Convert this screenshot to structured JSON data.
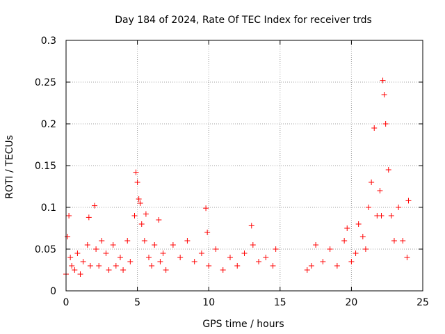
{
  "chart_data": {
    "type": "scatter",
    "title": "Day 184 of 2024, Rate Of TEC Index for receiver trds",
    "xlabel": "GPS time / hours",
    "ylabel": "ROTI / TECUs",
    "xlim": [
      0,
      25
    ],
    "ylim": [
      0,
      0.3
    ],
    "xticks": [
      0,
      5,
      10,
      15,
      20,
      25
    ],
    "xtick_labels": [
      "0",
      "5",
      "10",
      "15",
      "20",
      "25"
    ],
    "yticks": [
      0,
      0.05,
      0.1,
      0.15,
      0.2,
      0.25,
      0.3
    ],
    "ytick_labels": [
      "0",
      "0.05",
      "0.1",
      "0.15",
      "0.2",
      "0.25",
      "0.3"
    ],
    "grid": true,
    "marker": "+",
    "color": "#ff0000",
    "series": [
      {
        "name": "ROTI",
        "x": [
          0.0,
          0.1,
          0.2,
          0.3,
          0.4,
          0.6,
          0.8,
          1.0,
          1.2,
          1.5,
          1.6,
          1.7,
          2.0,
          2.1,
          2.3,
          2.5,
          2.8,
          3.0,
          3.3,
          3.5,
          3.8,
          4.0,
          4.3,
          4.5,
          4.8,
          4.9,
          5.0,
          5.1,
          5.2,
          5.3,
          5.5,
          5.6,
          5.8,
          6.0,
          6.2,
          6.5,
          6.6,
          6.8,
          7.0,
          7.5,
          8.0,
          8.5,
          9.0,
          9.5,
          9.8,
          9.9,
          10.0,
          10.5,
          11.0,
          11.5,
          12.0,
          12.5,
          13.0,
          13.1,
          13.5,
          14.0,
          14.5,
          14.7,
          16.9,
          17.2,
          17.5,
          18.0,
          18.5,
          19.0,
          19.5,
          19.7,
          20.0,
          20.3,
          20.5,
          20.8,
          21.0,
          21.2,
          21.4,
          21.6,
          21.8,
          22.0,
          22.1,
          22.2,
          22.3,
          22.4,
          22.6,
          22.8,
          23.0,
          23.3,
          23.6,
          23.9,
          24.0
        ],
        "y": [
          0.02,
          0.065,
          0.09,
          0.04,
          0.03,
          0.025,
          0.045,
          0.02,
          0.035,
          0.055,
          0.088,
          0.03,
          0.102,
          0.05,
          0.03,
          0.06,
          0.045,
          0.025,
          0.055,
          0.03,
          0.04,
          0.025,
          0.06,
          0.035,
          0.09,
          0.142,
          0.13,
          0.11,
          0.105,
          0.08,
          0.06,
          0.092,
          0.04,
          0.03,
          0.055,
          0.085,
          0.035,
          0.045,
          0.025,
          0.055,
          0.04,
          0.06,
          0.035,
          0.045,
          0.099,
          0.07,
          0.03,
          0.05,
          0.025,
          0.04,
          0.03,
          0.045,
          0.078,
          0.055,
          0.035,
          0.04,
          0.03,
          0.05,
          0.025,
          0.03,
          0.055,
          0.035,
          0.05,
          0.03,
          0.06,
          0.075,
          0.035,
          0.045,
          0.08,
          0.065,
          0.05,
          0.1,
          0.13,
          0.195,
          0.09,
          0.12,
          0.09,
          0.252,
          0.235,
          0.2,
          0.145,
          0.09,
          0.06,
          0.1,
          0.06,
          0.04,
          0.108
        ]
      }
    ]
  }
}
